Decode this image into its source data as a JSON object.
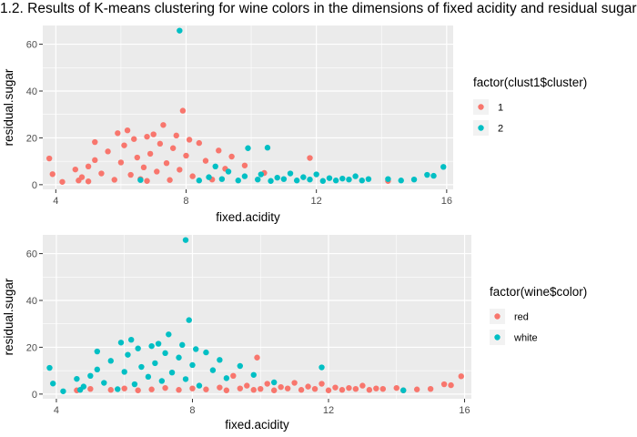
{
  "title": "1.2. Results of K-means clustering for wine colors in the dimensions of fixed acidity and residual sugar",
  "colors": {
    "series1": "#F8766D",
    "series2": "#00BFC4",
    "panel": "#EBEBEB",
    "grid": "#FFFFFF"
  },
  "chart_data": [
    {
      "type": "scatter",
      "xlabel": "fixed.acidity",
      "ylabel": "residual.sugar",
      "xlim": [
        3.6,
        16.2
      ],
      "ylim": [
        -2,
        68
      ],
      "xticks": [
        4,
        8,
        12,
        16
      ],
      "yticks": [
        0,
        20,
        40,
        60
      ],
      "legend": {
        "title": "factor(clust1$cluster)",
        "position": "right"
      },
      "series": [
        {
          "name": "1",
          "points": [
            [
              3.8,
              11.2
            ],
            [
              3.9,
              4.5
            ],
            [
              4.2,
              1.2
            ],
            [
              4.6,
              6.5
            ],
            [
              4.7,
              1.8
            ],
            [
              4.8,
              3.2
            ],
            [
              5.0,
              7.8
            ],
            [
              5.0,
              1.4
            ],
            [
              5.2,
              10.5
            ],
            [
              5.2,
              18.2
            ],
            [
              5.4,
              4.8
            ],
            [
              5.6,
              14.2
            ],
            [
              5.8,
              2.1
            ],
            [
              5.9,
              22.0
            ],
            [
              6.0,
              9.5
            ],
            [
              6.1,
              16.8
            ],
            [
              6.2,
              23.2
            ],
            [
              6.3,
              4.2
            ],
            [
              6.4,
              19.5
            ],
            [
              6.5,
              11.6
            ],
            [
              6.6,
              2.4
            ],
            [
              6.7,
              7.4
            ],
            [
              6.8,
              20.5
            ],
            [
              6.8,
              1.6
            ],
            [
              6.9,
              13.2
            ],
            [
              7.0,
              21.5
            ],
            [
              7.1,
              5.6
            ],
            [
              7.2,
              17.5
            ],
            [
              7.3,
              25.5
            ],
            [
              7.4,
              9.2
            ],
            [
              7.5,
              2.0
            ],
            [
              7.6,
              15.6
            ],
            [
              7.7,
              21.0
            ],
            [
              7.8,
              6.4
            ],
            [
              7.9,
              31.6
            ],
            [
              8.0,
              12.4
            ],
            [
              8.1,
              19.2
            ],
            [
              8.2,
              3.6
            ],
            [
              8.4,
              17.8
            ],
            [
              8.6,
              10.2
            ],
            [
              8.8,
              2.2
            ],
            [
              9.0,
              14.6
            ],
            [
              9.2,
              6.8
            ],
            [
              9.4,
              12.0
            ],
            [
              9.8,
              8.2
            ],
            [
              10.4,
              5.0
            ],
            [
              11.8,
              11.4
            ],
            [
              14.2,
              1.6
            ]
          ]
        },
        {
          "name": "2",
          "points": [
            [
              7.8,
              65.8
            ],
            [
              6.6,
              2.0
            ],
            [
              8.4,
              1.8
            ],
            [
              8.7,
              3.2
            ],
            [
              8.9,
              7.8
            ],
            [
              9.1,
              2.4
            ],
            [
              9.3,
              5.6
            ],
            [
              9.6,
              1.8
            ],
            [
              9.8,
              3.6
            ],
            [
              9.9,
              15.6
            ],
            [
              10.2,
              2.2
            ],
            [
              10.3,
              4.4
            ],
            [
              10.5,
              15.8
            ],
            [
              10.6,
              1.6
            ],
            [
              10.8,
              3.0
            ],
            [
              11.0,
              2.4
            ],
            [
              11.2,
              4.8
            ],
            [
              11.4,
              1.8
            ],
            [
              11.6,
              3.2
            ],
            [
              11.8,
              2.2
            ],
            [
              12.0,
              4.4
            ],
            [
              12.2,
              1.6
            ],
            [
              12.4,
              2.8
            ],
            [
              12.6,
              1.8
            ],
            [
              12.8,
              2.6
            ],
            [
              13.0,
              2.2
            ],
            [
              13.2,
              3.6
            ],
            [
              13.4,
              1.8
            ],
            [
              13.6,
              2.4
            ],
            [
              14.2,
              2.4
            ],
            [
              14.6,
              1.8
            ],
            [
              15.0,
              2.2
            ],
            [
              15.4,
              4.2
            ],
            [
              15.6,
              3.8
            ],
            [
              15.9,
              7.6
            ]
          ]
        }
      ]
    },
    {
      "type": "scatter",
      "xlabel": "fixed.acidity",
      "ylabel": "residual.sugar",
      "xlim": [
        3.6,
        16.2
      ],
      "ylim": [
        -2,
        68
      ],
      "xticks": [
        4,
        8,
        12,
        16
      ],
      "yticks": [
        0,
        20,
        40,
        60
      ],
      "legend": {
        "title": "factor(wine$color)",
        "position": "right"
      },
      "series": [
        {
          "name": "red",
          "points": [
            [
              4.6,
              1.6
            ],
            [
              5.0,
              2.2
            ],
            [
              5.6,
              1.8
            ],
            [
              6.0,
              2.4
            ],
            [
              6.4,
              1.6
            ],
            [
              6.8,
              2.0
            ],
            [
              7.2,
              2.6
            ],
            [
              7.6,
              1.8
            ],
            [
              8.0,
              2.4
            ],
            [
              8.4,
              2.0
            ],
            [
              8.8,
              2.8
            ],
            [
              9.0,
              1.6
            ],
            [
              9.2,
              7.8
            ],
            [
              9.4,
              2.4
            ],
            [
              9.6,
              3.6
            ],
            [
              9.8,
              1.8
            ],
            [
              9.9,
              15.6
            ],
            [
              10.0,
              2.2
            ],
            [
              10.2,
              4.4
            ],
            [
              10.4,
              1.6
            ],
            [
              10.6,
              3.0
            ],
            [
              10.8,
              2.4
            ],
            [
              11.0,
              4.8
            ],
            [
              11.2,
              1.8
            ],
            [
              11.4,
              3.2
            ],
            [
              11.6,
              2.2
            ],
            [
              11.8,
              4.4
            ],
            [
              12.0,
              1.6
            ],
            [
              12.2,
              2.8
            ],
            [
              12.4,
              1.8
            ],
            [
              12.6,
              2.6
            ],
            [
              12.8,
              2.2
            ],
            [
              13.0,
              3.6
            ],
            [
              13.2,
              1.8
            ],
            [
              13.4,
              2.4
            ],
            [
              13.6,
              2.2
            ],
            [
              14.0,
              2.6
            ],
            [
              14.2,
              1.6
            ],
            [
              14.6,
              2.0
            ],
            [
              15.0,
              2.2
            ],
            [
              15.4,
              4.2
            ],
            [
              15.6,
              3.8
            ],
            [
              15.9,
              7.6
            ]
          ]
        },
        {
          "name": "white",
          "points": [
            [
              3.8,
              11.2
            ],
            [
              3.9,
              4.5
            ],
            [
              4.2,
              1.2
            ],
            [
              4.6,
              6.5
            ],
            [
              4.7,
              1.8
            ],
            [
              4.8,
              3.2
            ],
            [
              5.0,
              7.8
            ],
            [
              5.2,
              10.5
            ],
            [
              5.2,
              18.2
            ],
            [
              5.4,
              4.8
            ],
            [
              5.6,
              14.2
            ],
            [
              5.8,
              2.1
            ],
            [
              5.9,
              22.0
            ],
            [
              6.0,
              9.5
            ],
            [
              6.1,
              16.8
            ],
            [
              6.2,
              23.2
            ],
            [
              6.3,
              4.2
            ],
            [
              6.4,
              19.5
            ],
            [
              6.5,
              11.6
            ],
            [
              6.7,
              7.4
            ],
            [
              6.8,
              20.5
            ],
            [
              6.9,
              13.2
            ],
            [
              7.0,
              21.5
            ],
            [
              7.1,
              5.6
            ],
            [
              7.2,
              17.5
            ],
            [
              7.3,
              25.5
            ],
            [
              7.4,
              9.2
            ],
            [
              7.6,
              15.6
            ],
            [
              7.7,
              21.0
            ],
            [
              7.8,
              6.4
            ],
            [
              7.8,
              65.8
            ],
            [
              7.9,
              31.6
            ],
            [
              8.0,
              12.4
            ],
            [
              8.1,
              19.2
            ],
            [
              8.2,
              3.6
            ],
            [
              8.4,
              17.8
            ],
            [
              8.6,
              10.2
            ],
            [
              8.8,
              14.6
            ],
            [
              9.0,
              6.8
            ],
            [
              9.4,
              12.0
            ],
            [
              9.8,
              8.2
            ],
            [
              10.4,
              5.0
            ],
            [
              11.8,
              11.4
            ],
            [
              14.2,
              1.6
            ]
          ]
        }
      ]
    }
  ]
}
